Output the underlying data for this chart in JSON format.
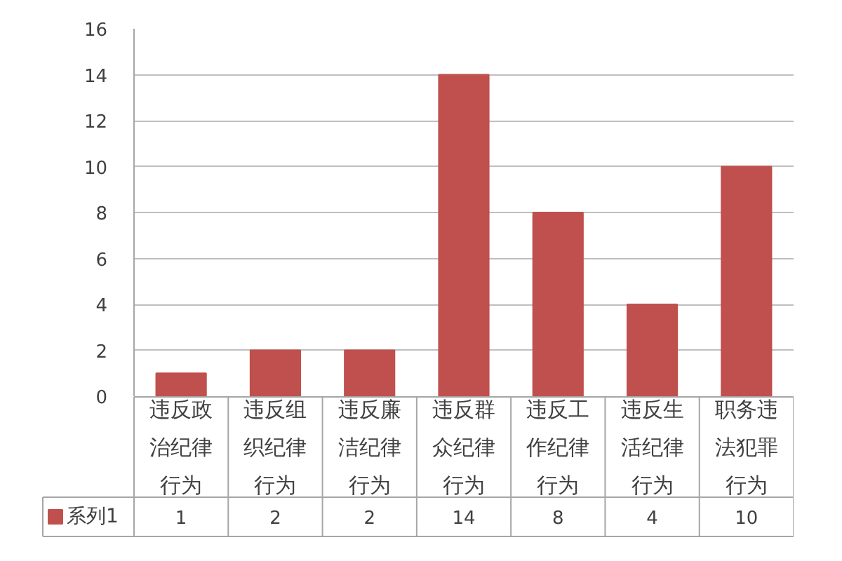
{
  "chart_data": {
    "type": "bar",
    "categories": [
      "违反政治纪律行为",
      "违反组织纪律行为",
      "违反廉洁纪律行为",
      "违反群众纪律行为",
      "违反工作纪律行为",
      "违反生活纪律行为",
      "职务违法犯罪行为"
    ],
    "series": [
      {
        "name": "系列1",
        "color": "#c0504d",
        "values": [
          1,
          2,
          2,
          14,
          8,
          4,
          10
        ]
      }
    ],
    "ylim": [
      0,
      16
    ],
    "yticks": [
      0,
      2,
      4,
      6,
      8,
      10,
      12,
      14,
      16
    ],
    "grid": "y",
    "legend": "bottom",
    "data_labels": true
  }
}
